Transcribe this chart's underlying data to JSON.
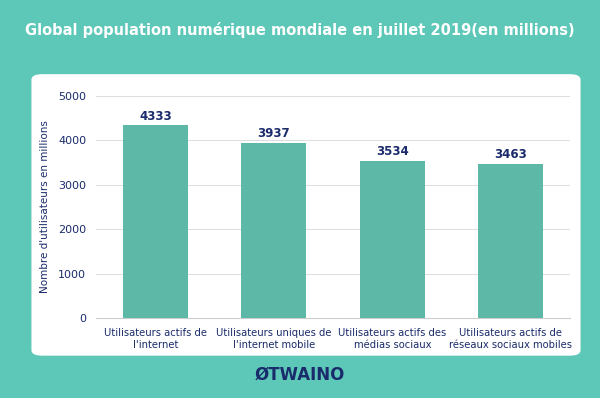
{
  "title": "Global population numérique mondiale en juillet 2019(en millions)",
  "categories": [
    "Utilisateurs actifs de\nl'internet",
    "Utilisateurs uniques de\nl'internet mobile",
    "Utilisateurs actifs des\nmédias sociaux",
    "Utilisateurs actifs de\nréseaux sociaux mobiles"
  ],
  "values": [
    4333,
    3937,
    3534,
    3463
  ],
  "bar_color": "#5db8a8",
  "ylabel": "Nombre d'utilisateurs en millions",
  "ylim": [
    0,
    5000
  ],
  "yticks": [
    0,
    1000,
    2000,
    3000,
    4000,
    5000
  ],
  "title_color": "#ffffff",
  "title_bg_color": "#0d1b4b",
  "outer_bg_color": "#5ec8b8",
  "inner_bg_color": "#ffffff",
  "label_color": "#1a2b6b",
  "bar_label_color": "#1a2b6b",
  "axis_label_color": "#1a2b6b",
  "tick_color": "#1a2b6b",
  "footer_text": "ØTWAINO",
  "footer_color": "#1a2b6b"
}
